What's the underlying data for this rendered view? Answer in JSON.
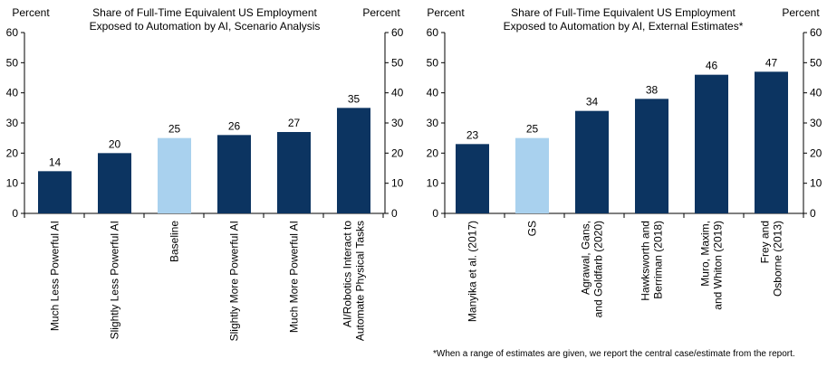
{
  "chart_data": [
    {
      "type": "bar",
      "title": "Share of Full-Time Equivalent US Employment Exposed to Automation by AI, Scenario Analysis",
      "title_lines": [
        "Share of Full-Time Equivalent US Employment",
        "Exposed to Automation by AI, Scenario Analysis"
      ],
      "ylabel_left": "Percent",
      "ylabel_right": "Percent",
      "ylim": [
        0,
        60
      ],
      "yticks": [
        0,
        10,
        20,
        30,
        40,
        50,
        60
      ],
      "categories": [
        [
          "Much Less Powerful AI"
        ],
        [
          "Slightly Less Powerful AI"
        ],
        [
          "Baseline"
        ],
        [
          "Slightly More Powerful AI"
        ],
        [
          "Much More Powerful AI"
        ],
        [
          "AI/Robotics Interact to",
          "Automate Physical Tasks"
        ]
      ],
      "values": [
        14,
        20,
        25,
        26,
        27,
        35
      ],
      "highlight": [
        false,
        false,
        true,
        false,
        false,
        false
      ]
    },
    {
      "type": "bar",
      "title": "Share of Full-Time Equivalent US Employment Exposed to Automation by AI, External Estimates*",
      "title_lines": [
        "Share of Full-Time Equivalent US Employment",
        "Exposed to Automation by AI, External Estimates*"
      ],
      "ylabel_left": "Percent",
      "ylabel_right": "Percent",
      "ylim": [
        0,
        60
      ],
      "yticks": [
        0,
        10,
        20,
        30,
        40,
        50,
        60
      ],
      "categories": [
        [
          "Manyika et al. (2017)"
        ],
        [
          "GS"
        ],
        [
          "Agrawal, Gans,",
          "and Goldfarb (2020)"
        ],
        [
          "Hawksworth and",
          "Berriman (2018)"
        ],
        [
          "Muro, Maxim,",
          "and Whiton (2019)"
        ],
        [
          "Frey and",
          "Osborne (2013)"
        ]
      ],
      "values": [
        23,
        25,
        34,
        38,
        46,
        47
      ],
      "highlight": [
        false,
        true,
        false,
        false,
        false,
        false
      ]
    }
  ],
  "colors": {
    "bar": "#0c3461",
    "highlight": "#a9d1ee"
  },
  "footnote": "*When a range of estimates are given, we report the central case/estimate from the report."
}
